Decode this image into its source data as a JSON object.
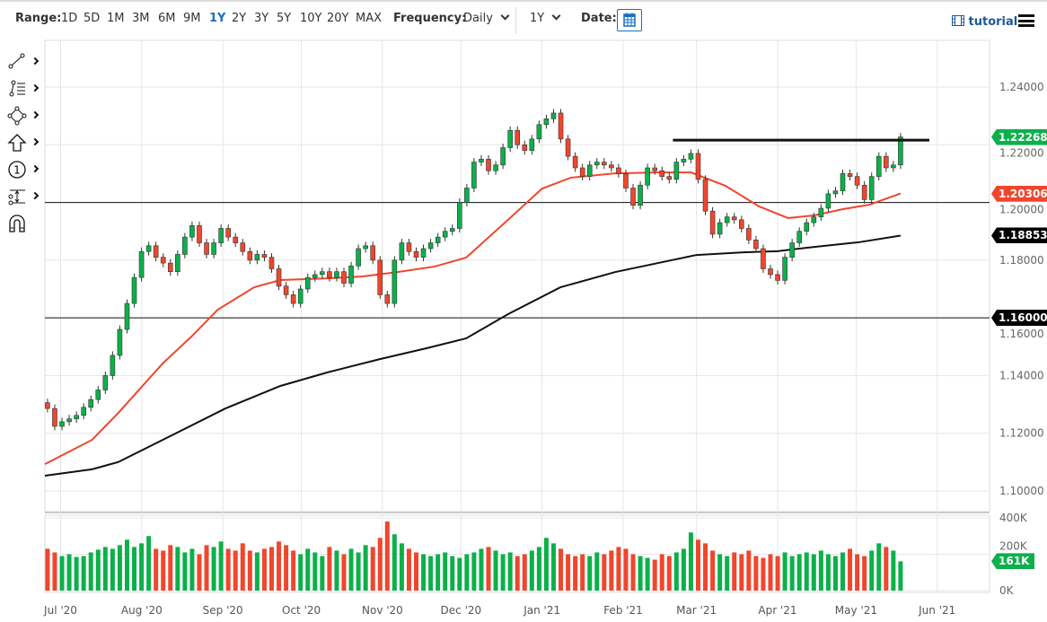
{
  "toolbar": {
    "range_label": "Range:",
    "ranges": [
      "1D",
      "5D",
      "1M",
      "3M",
      "6M",
      "9M",
      "1Y",
      "2Y",
      "3Y",
      "5Y",
      "10Y",
      "20Y",
      "MAX"
    ],
    "active_range": "1Y",
    "frequency_label": "Frequency:",
    "frequency_value": "Daily",
    "period_value": "1Y",
    "date_label": "Date:",
    "tutorial_label": "tutorial"
  },
  "left_tools": [
    "line-tool-icon",
    "fibonacci-tool-icon",
    "shape-tool-icon",
    "arrow-tool-icon",
    "number-marker-icon",
    "measure-tool-icon",
    "magnet-icon"
  ],
  "colors": {
    "up": "#0cb04a",
    "down": "#f0462d",
    "ma_fast": "#f0462d",
    "ma_slow": "#111111",
    "label_dark": "#000000"
  },
  "chart_data": {
    "type": "candlestick",
    "first_date": "2020-06-26",
    "last_date": "2021-05-18",
    "x_ticks": [
      {
        "date": "2020-07-01",
        "label": "Jul '20"
      },
      {
        "date": "2020-08-01",
        "label": "Aug '20"
      },
      {
        "date": "2020-09-01",
        "label": "Sep '20"
      },
      {
        "date": "2020-10-01",
        "label": "Oct '20"
      },
      {
        "date": "2020-11-01",
        "label": "Nov '20"
      },
      {
        "date": "2020-12-01",
        "label": "Dec '20"
      },
      {
        "date": "2021-01-01",
        "label": "Jan '21"
      },
      {
        "date": "2021-02-01",
        "label": "Feb '21"
      },
      {
        "date": "2021-03-01",
        "label": "Mar '21"
      },
      {
        "date": "2021-04-01",
        "label": "Apr '21"
      },
      {
        "date": "2021-05-01",
        "label": "May '21"
      },
      {
        "date": "2021-06-01",
        "label": "Jun '21"
      }
    ],
    "x_range": [
      "2020-06-25",
      "2021-06-21"
    ],
    "y_ticks": [
      "1.10000",
      "1.12000",
      "1.14000",
      "1.16000",
      "1.18000",
      "1.20000",
      "1.22000",
      "1.24000"
    ],
    "ylim": [
      1.095,
      1.255
    ],
    "grid": true,
    "closes": [
      1.1286,
      1.1224,
      1.124,
      1.125,
      1.1262,
      1.129,
      1.1317,
      1.135,
      1.14,
      1.147,
      1.156,
      1.165,
      1.174,
      1.183,
      1.185,
      1.181,
      1.179,
      1.176,
      1.182,
      1.188,
      1.192,
      1.186,
      1.182,
      1.186,
      1.191,
      1.188,
      1.186,
      1.183,
      1.18,
      1.182,
      1.181,
      1.177,
      1.171,
      1.168,
      1.165,
      1.17,
      1.174,
      1.175,
      1.176,
      1.174,
      1.176,
      1.172,
      1.178,
      1.184,
      1.185,
      1.18,
      1.168,
      1.165,
      1.18,
      1.186,
      1.183,
      1.181,
      1.184,
      1.186,
      1.188,
      1.19,
      1.191,
      1.2,
      1.205,
      1.214,
      1.215,
      1.211,
      1.213,
      1.219,
      1.225,
      1.22,
      1.218,
      1.222,
      1.227,
      1.229,
      1.231,
      1.222,
      1.216,
      1.212,
      1.209,
      1.213,
      1.214,
      1.213,
      1.212,
      1.21,
      1.205,
      1.199,
      1.206,
      1.212,
      1.211,
      1.209,
      1.208,
      1.214,
      1.215,
      1.217,
      1.208,
      1.197,
      1.189,
      1.193,
      1.195,
      1.194,
      1.191,
      1.187,
      1.184,
      1.177,
      1.175,
      1.173,
      1.181,
      1.186,
      1.19,
      1.193,
      1.195,
      1.198,
      1.203,
      1.204,
      1.21,
      1.209,
      1.206,
      1.201,
      1.209,
      1.216,
      1.212,
      1.213,
      1.2227
    ],
    "volumes_k": [
      230,
      210,
      190,
      200,
      185,
      190,
      210,
      225,
      240,
      230,
      250,
      280,
      240,
      260,
      300,
      230,
      220,
      250,
      240,
      210,
      230,
      200,
      250,
      240,
      270,
      230,
      220,
      260,
      220,
      210,
      230,
      240,
      270,
      250,
      220,
      200,
      230,
      210,
      190,
      240,
      220,
      200,
      230,
      210,
      250,
      240,
      290,
      380,
      310,
      260,
      230,
      210,
      200,
      190,
      200,
      210,
      190,
      180,
      200,
      210,
      230,
      240,
      220,
      200,
      210,
      190,
      200,
      220,
      240,
      290,
      260,
      230,
      200,
      190,
      200,
      190,
      210,
      200,
      220,
      240,
      230,
      200,
      190,
      180,
      170,
      200,
      190,
      210,
      230,
      320,
      280,
      260,
      220,
      200,
      190,
      210,
      200,
      220,
      190,
      180,
      200,
      190,
      210,
      190,
      200,
      210,
      200,
      220,
      200,
      190,
      210,
      230,
      200,
      190,
      220,
      260,
      240,
      220,
      161
    ],
    "vol_ticks": [
      "0K",
      "200K",
      "400K"
    ],
    "vol_range": [
      0,
      400
    ],
    "series": [
      {
        "type": "sma",
        "color": "#f0462d",
        "points": [
          [
            "2020-06-25",
            1.1093
          ],
          [
            "2020-07-13",
            1.1177
          ],
          [
            "2020-07-23",
            1.127
          ],
          [
            "2020-08-09",
            1.1442
          ],
          [
            "2020-08-20",
            1.1535
          ],
          [
            "2020-08-30",
            1.1628
          ],
          [
            "2020-09-13",
            1.1706
          ],
          [
            "2020-09-23",
            1.1731
          ],
          [
            "2020-10-11",
            1.1737
          ],
          [
            "2020-10-24",
            1.1743
          ],
          [
            "2020-11-07",
            1.1759
          ],
          [
            "2020-11-21",
            1.1778
          ],
          [
            "2020-12-03",
            1.1809
          ],
          [
            "2020-12-19",
            1.194
          ],
          [
            "2021-01-01",
            1.2048
          ],
          [
            "2021-01-12",
            1.2086
          ],
          [
            "2021-01-29",
            1.2101
          ],
          [
            "2021-02-15",
            1.2104
          ],
          [
            "2021-02-27",
            1.2104
          ],
          [
            "2021-03-12",
            1.2058
          ],
          [
            "2021-03-25",
            1.1986
          ],
          [
            "2021-04-05",
            1.1946
          ],
          [
            "2021-04-15",
            1.1955
          ],
          [
            "2021-04-26",
            1.1977
          ],
          [
            "2021-05-06",
            1.1992
          ],
          [
            "2021-05-18",
            1.2031
          ]
        ]
      },
      {
        "type": "sma",
        "color": "#111111",
        "points": [
          [
            "2020-06-25",
            1.1053
          ],
          [
            "2020-07-13",
            1.1075
          ],
          [
            "2020-07-23",
            1.11
          ],
          [
            "2020-08-09",
            1.1177
          ],
          [
            "2020-09-02",
            1.1286
          ],
          [
            "2020-09-23",
            1.1364
          ],
          [
            "2020-10-11",
            1.1411
          ],
          [
            "2020-10-31",
            1.1457
          ],
          [
            "2020-11-18",
            1.1495
          ],
          [
            "2020-12-03",
            1.1529
          ],
          [
            "2020-12-19",
            1.1613
          ],
          [
            "2021-01-08",
            1.1706
          ],
          [
            "2021-01-29",
            1.1759
          ],
          [
            "2021-02-19",
            1.1799
          ],
          [
            "2021-03-01",
            1.1818
          ],
          [
            "2021-03-19",
            1.1827
          ],
          [
            "2021-04-01",
            1.1831
          ],
          [
            "2021-04-15",
            1.1846
          ],
          [
            "2021-05-02",
            1.1862
          ],
          [
            "2021-05-18",
            1.1885
          ]
        ]
      }
    ],
    "horizontal_lines": [
      1.2,
      1.16
    ],
    "trend_line": {
      "from": [
        "2021-02-20",
        1.2216
      ],
      "to": [
        "2021-05-29",
        1.2216
      ]
    },
    "price_labels": [
      {
        "text": "1.22268",
        "value": 1.22268,
        "color": "#0cb04a"
      },
      {
        "text": "1.20306",
        "value": 1.20306,
        "color": "#f0462d"
      },
      {
        "text": "1.18853",
        "value": 1.18853,
        "color": "#000000"
      },
      {
        "text": "1.16000",
        "value": 1.16,
        "color": "#000000"
      }
    ],
    "volume_label": {
      "text": "161K",
      "value": 161,
      "color": "#0cb04a"
    }
  }
}
